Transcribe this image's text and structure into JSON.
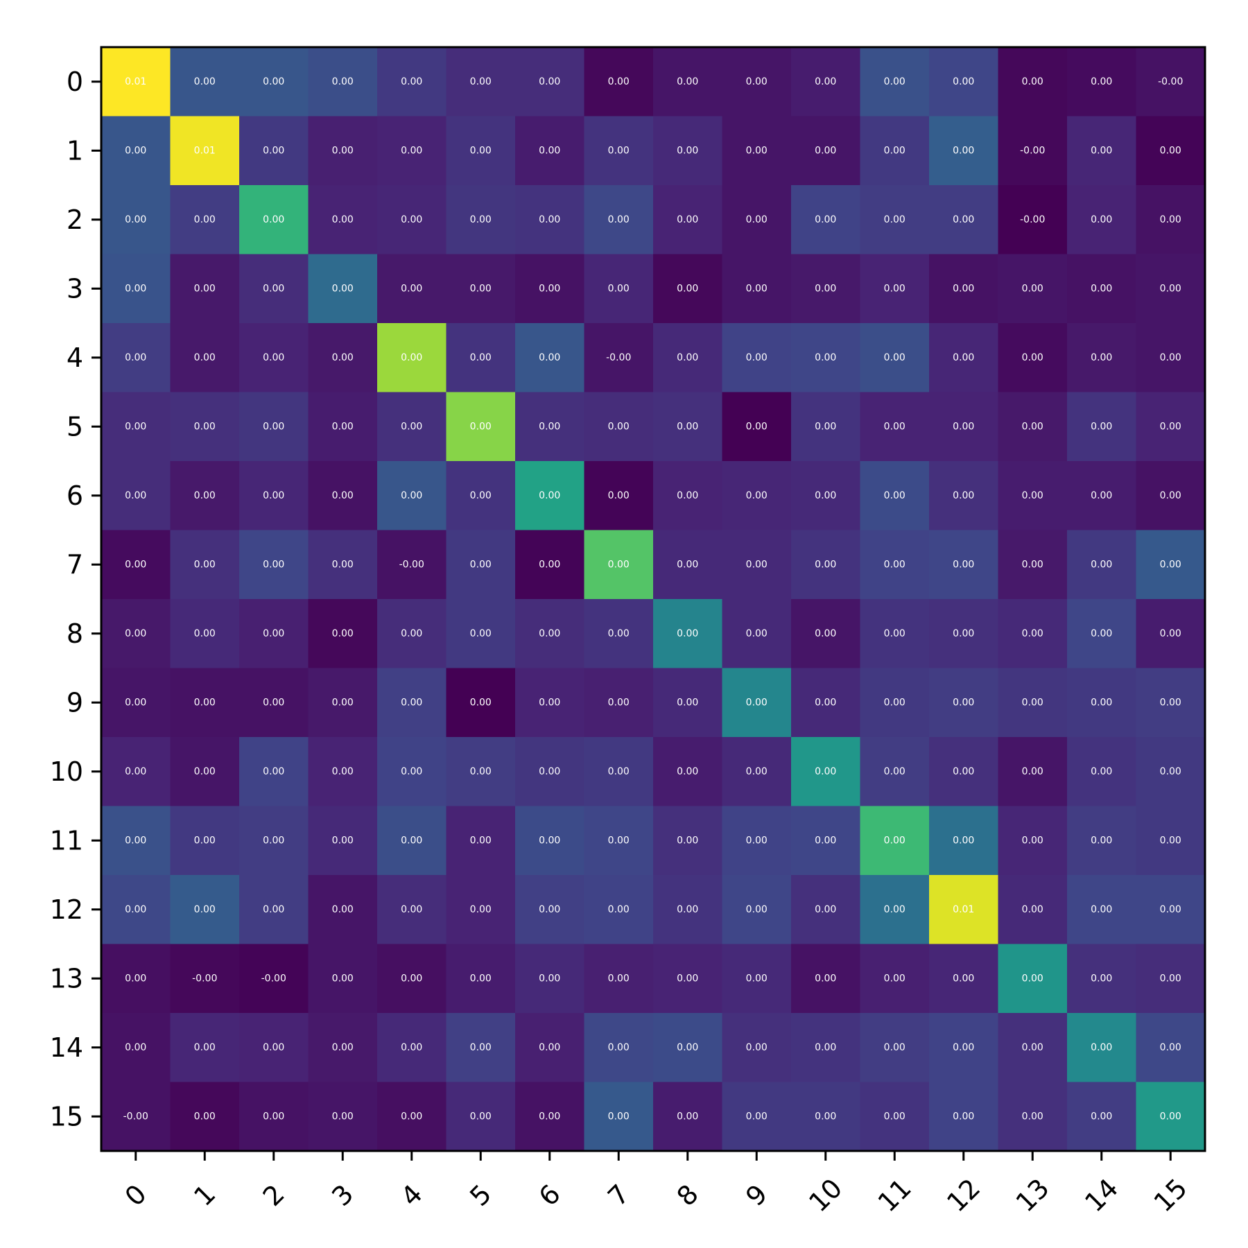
{
  "chart_data": {
    "type": "heatmap",
    "title": "",
    "xlabel": "",
    "ylabel": "",
    "x_categories": [
      "0",
      "1",
      "2",
      "3",
      "4",
      "5",
      "6",
      "7",
      "8",
      "9",
      "10",
      "11",
      "12",
      "13",
      "14",
      "15"
    ],
    "y_categories": [
      "0",
      "1",
      "2",
      "3",
      "4",
      "5",
      "6",
      "7",
      "8",
      "9",
      "10",
      "11",
      "12",
      "13",
      "14",
      "15"
    ],
    "colormap": "viridis",
    "color_range": [
      0,
      1
    ],
    "x_tick_rotation_deg": 45,
    "cell_text": [
      [
        "0.01",
        "0.00",
        "0.00",
        "0.00",
        "0.00",
        "0.00",
        "0.00",
        "0.00",
        "0.00",
        "0.00",
        "0.00",
        "0.00",
        "0.00",
        "0.00",
        "0.00",
        "-0.00"
      ],
      [
        "0.00",
        "0.01",
        "0.00",
        "0.00",
        "0.00",
        "0.00",
        "0.00",
        "0.00",
        "0.00",
        "0.00",
        "0.00",
        "0.00",
        "0.00",
        "-0.00",
        "0.00",
        "0.00"
      ],
      [
        "0.00",
        "0.00",
        "0.00",
        "0.00",
        "0.00",
        "0.00",
        "0.00",
        "0.00",
        "0.00",
        "0.00",
        "0.00",
        "0.00",
        "0.00",
        "-0.00",
        "0.00",
        "0.00"
      ],
      [
        "0.00",
        "0.00",
        "0.00",
        "0.00",
        "0.00",
        "0.00",
        "0.00",
        "0.00",
        "0.00",
        "0.00",
        "0.00",
        "0.00",
        "0.00",
        "0.00",
        "0.00",
        "0.00"
      ],
      [
        "0.00",
        "0.00",
        "0.00",
        "0.00",
        "0.00",
        "0.00",
        "0.00",
        "-0.00",
        "0.00",
        "0.00",
        "0.00",
        "0.00",
        "0.00",
        "0.00",
        "0.00",
        "0.00"
      ],
      [
        "0.00",
        "0.00",
        "0.00",
        "0.00",
        "0.00",
        "0.00",
        "0.00",
        "0.00",
        "0.00",
        "0.00",
        "0.00",
        "0.00",
        "0.00",
        "0.00",
        "0.00",
        "0.00"
      ],
      [
        "0.00",
        "0.00",
        "0.00",
        "0.00",
        "0.00",
        "0.00",
        "0.00",
        "0.00",
        "0.00",
        "0.00",
        "0.00",
        "0.00",
        "0.00",
        "0.00",
        "0.00",
        "0.00"
      ],
      [
        "0.00",
        "0.00",
        "0.00",
        "0.00",
        "-0.00",
        "0.00",
        "0.00",
        "0.00",
        "0.00",
        "0.00",
        "0.00",
        "0.00",
        "0.00",
        "0.00",
        "0.00",
        "0.00"
      ],
      [
        "0.00",
        "0.00",
        "0.00",
        "0.00",
        "0.00",
        "0.00",
        "0.00",
        "0.00",
        "0.00",
        "0.00",
        "0.00",
        "0.00",
        "0.00",
        "0.00",
        "0.00",
        "0.00"
      ],
      [
        "0.00",
        "0.00",
        "0.00",
        "0.00",
        "0.00",
        "0.00",
        "0.00",
        "0.00",
        "0.00",
        "0.00",
        "0.00",
        "0.00",
        "0.00",
        "0.00",
        "0.00",
        "0.00"
      ],
      [
        "0.00",
        "0.00",
        "0.00",
        "0.00",
        "0.00",
        "0.00",
        "0.00",
        "0.00",
        "0.00",
        "0.00",
        "0.00",
        "0.00",
        "0.00",
        "0.00",
        "0.00",
        "0.00"
      ],
      [
        "0.00",
        "0.00",
        "0.00",
        "0.00",
        "0.00",
        "0.00",
        "0.00",
        "0.00",
        "0.00",
        "0.00",
        "0.00",
        "0.00",
        "0.00",
        "0.00",
        "0.00",
        "0.00"
      ],
      [
        "0.00",
        "0.00",
        "0.00",
        "0.00",
        "0.00",
        "0.00",
        "0.00",
        "0.00",
        "0.00",
        "0.00",
        "0.00",
        "0.00",
        "0.01",
        "0.00",
        "0.00",
        "0.00"
      ],
      [
        "0.00",
        "-0.00",
        "-0.00",
        "0.00",
        "0.00",
        "0.00",
        "0.00",
        "0.00",
        "0.00",
        "0.00",
        "0.00",
        "0.00",
        "0.00",
        "0.00",
        "0.00",
        "0.00"
      ],
      [
        "0.00",
        "0.00",
        "0.00",
        "0.00",
        "0.00",
        "0.00",
        "0.00",
        "0.00",
        "0.00",
        "0.00",
        "0.00",
        "0.00",
        "0.00",
        "0.00",
        "0.00",
        "0.00"
      ],
      [
        "-0.00",
        "0.00",
        "0.00",
        "0.00",
        "0.00",
        "0.00",
        "0.00",
        "0.00",
        "0.00",
        "0.00",
        "0.00",
        "0.00",
        "0.00",
        "0.00",
        "0.00",
        "0.00"
      ]
    ],
    "color_levels": [
      [
        1.0,
        0.27,
        0.27,
        0.24,
        0.17,
        0.13,
        0.13,
        0.02,
        0.06,
        0.06,
        0.08,
        0.25,
        0.21,
        0.02,
        0.03,
        0.05
      ],
      [
        0.27,
        0.98,
        0.17,
        0.09,
        0.1,
        0.15,
        0.08,
        0.15,
        0.12,
        0.06,
        0.06,
        0.17,
        0.3,
        0.02,
        0.11,
        0.01
      ],
      [
        0.27,
        0.18,
        0.65,
        0.1,
        0.11,
        0.16,
        0.15,
        0.22,
        0.1,
        0.06,
        0.2,
        0.18,
        0.18,
        0.0,
        0.1,
        0.05
      ],
      [
        0.26,
        0.07,
        0.13,
        0.35,
        0.07,
        0.07,
        0.05,
        0.11,
        0.02,
        0.06,
        0.07,
        0.1,
        0.05,
        0.06,
        0.05,
        0.06
      ],
      [
        0.18,
        0.07,
        0.1,
        0.07,
        0.85,
        0.15,
        0.27,
        0.06,
        0.12,
        0.2,
        0.21,
        0.24,
        0.11,
        0.03,
        0.07,
        0.06
      ],
      [
        0.13,
        0.14,
        0.16,
        0.08,
        0.14,
        0.82,
        0.14,
        0.13,
        0.14,
        0.0,
        0.15,
        0.1,
        0.1,
        0.07,
        0.15,
        0.1
      ],
      [
        0.13,
        0.07,
        0.11,
        0.05,
        0.27,
        0.15,
        0.58,
        0.01,
        0.1,
        0.11,
        0.12,
        0.23,
        0.14,
        0.08,
        0.08,
        0.05
      ],
      [
        0.03,
        0.14,
        0.21,
        0.14,
        0.05,
        0.17,
        0.01,
        0.73,
        0.12,
        0.12,
        0.15,
        0.2,
        0.21,
        0.07,
        0.17,
        0.28
      ],
      [
        0.07,
        0.12,
        0.09,
        0.02,
        0.13,
        0.17,
        0.13,
        0.15,
        0.45,
        0.12,
        0.06,
        0.15,
        0.14,
        0.12,
        0.21,
        0.08
      ],
      [
        0.06,
        0.05,
        0.05,
        0.07,
        0.19,
        0.0,
        0.1,
        0.09,
        0.12,
        0.46,
        0.12,
        0.17,
        0.18,
        0.16,
        0.17,
        0.18
      ],
      [
        0.1,
        0.06,
        0.2,
        0.1,
        0.2,
        0.18,
        0.16,
        0.17,
        0.08,
        0.12,
        0.53,
        0.18,
        0.14,
        0.06,
        0.15,
        0.17
      ],
      [
        0.25,
        0.17,
        0.18,
        0.12,
        0.24,
        0.1,
        0.23,
        0.21,
        0.14,
        0.2,
        0.21,
        0.68,
        0.37,
        0.11,
        0.18,
        0.17
      ],
      [
        0.22,
        0.29,
        0.18,
        0.06,
        0.13,
        0.1,
        0.19,
        0.2,
        0.15,
        0.21,
        0.14,
        0.37,
        0.95,
        0.12,
        0.21,
        0.21
      ],
      [
        0.04,
        0.02,
        0.01,
        0.06,
        0.04,
        0.08,
        0.12,
        0.09,
        0.1,
        0.12,
        0.05,
        0.09,
        0.11,
        0.52,
        0.14,
        0.13
      ],
      [
        0.05,
        0.11,
        0.1,
        0.07,
        0.12,
        0.19,
        0.09,
        0.22,
        0.23,
        0.14,
        0.15,
        0.18,
        0.2,
        0.14,
        0.47,
        0.22
      ],
      [
        0.05,
        0.02,
        0.05,
        0.06,
        0.04,
        0.12,
        0.05,
        0.28,
        0.08,
        0.17,
        0.17,
        0.15,
        0.2,
        0.14,
        0.18,
        0.54
      ]
    ],
    "grid": false,
    "legend": "none"
  }
}
